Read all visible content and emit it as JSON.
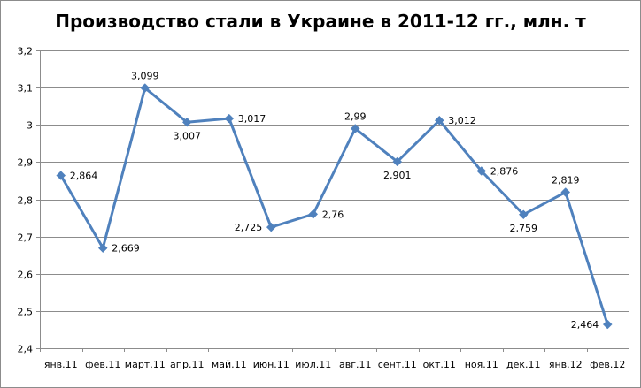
{
  "chart_data": {
    "type": "line",
    "title": "Производство стали в Украине в 2011-12 гг., млн. т",
    "xlabel": "",
    "ylabel": "",
    "categories": [
      "янв.11",
      "фев.11",
      "март.11",
      "апр.11",
      "май.11",
      "июн.11",
      "июл.11",
      "авг.11",
      "сент.11",
      "окт.11",
      "ноя.11",
      "дек.11",
      "янв.12",
      "фев.12"
    ],
    "series": [
      {
        "values": [
          2.864,
          2.669,
          3.099,
          3.007,
          3.017,
          2.725,
          2.76,
          2.99,
          2.901,
          3.012,
          2.876,
          2.759,
          2.819,
          2.464
        ],
        "data_labels": [
          "2,864",
          "2,669",
          "3,099",
          "3,007",
          "3,017",
          "2,725",
          "2,76",
          "2,99",
          "2,901",
          "3,012",
          "2,876",
          "2,759",
          "2,819",
          "2,464"
        ],
        "color": "#4f81bd"
      }
    ],
    "ylim": [
      2.4,
      3.2
    ],
    "y_ticks": [
      2.4,
      2.5,
      2.6,
      2.7,
      2.8,
      2.9,
      3.0,
      3.1,
      3.2
    ],
    "y_tick_labels": [
      "2,4",
      "2,5",
      "2,6",
      "2,7",
      "2,8",
      "2,9",
      "3",
      "3,1",
      "3,2"
    ],
    "grid": true,
    "legend": "none",
    "colors": {
      "line": "#4f81bd",
      "grid": "#8c8c8c",
      "axis": "#8c8c8c"
    }
  }
}
